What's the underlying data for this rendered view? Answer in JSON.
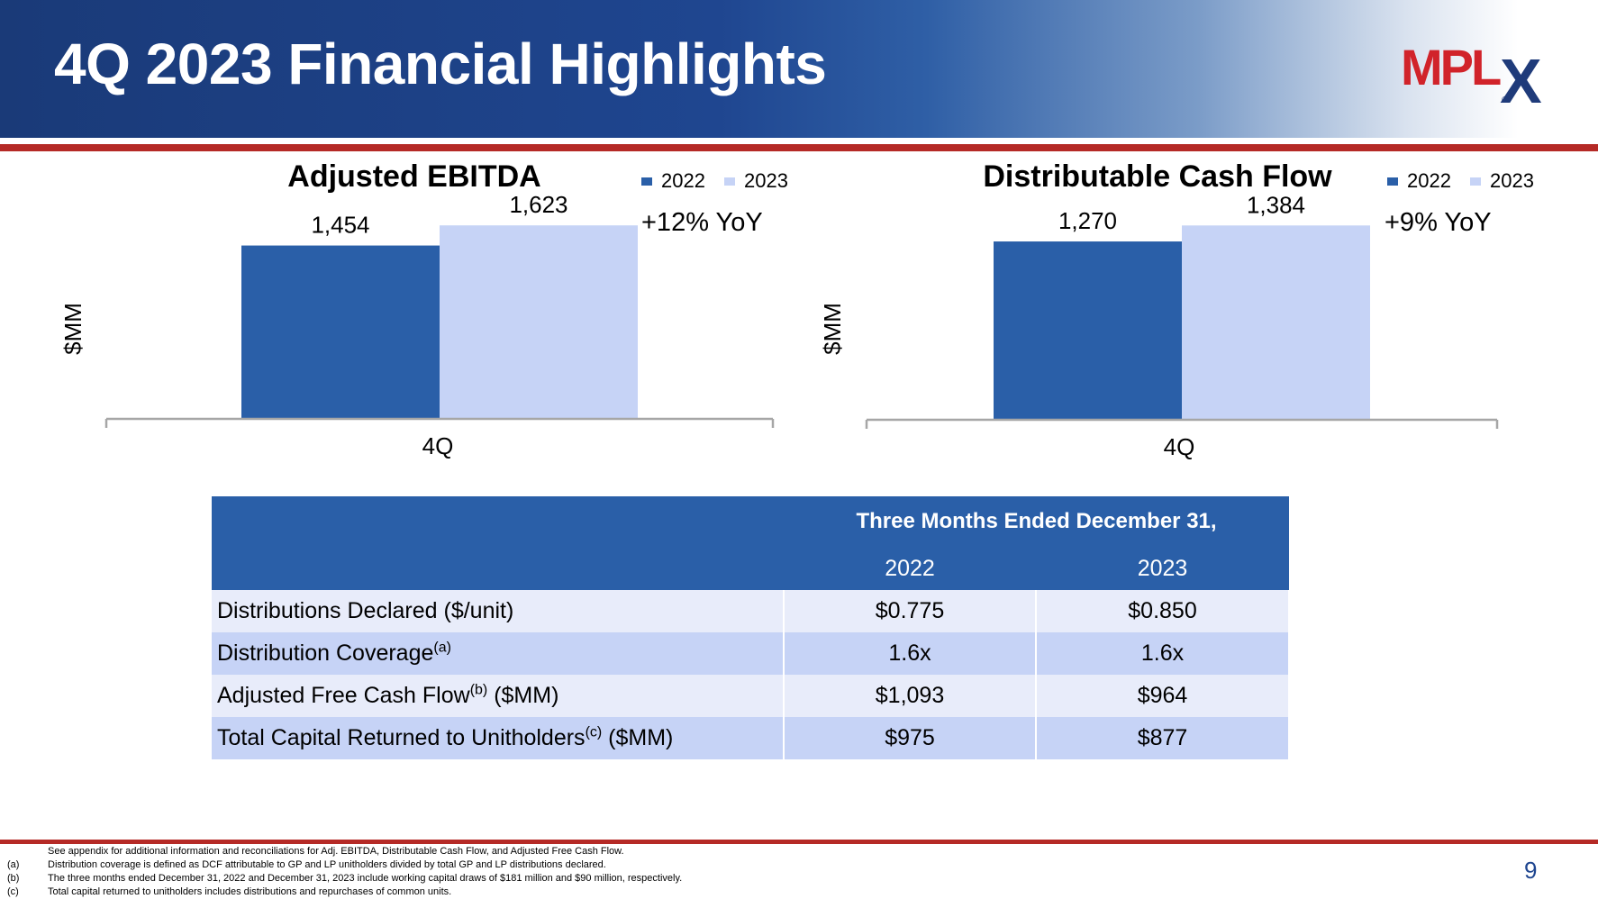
{
  "header": {
    "title": "4Q 2023 Financial Highlights",
    "logo_text": "MPLX",
    "logo_mark": "®"
  },
  "colors": {
    "brand_red": "#d1232a",
    "brand_navy": "#1f3b7a",
    "bar_2022": "#2a5fa8",
    "bar_2023": "#c6d3f6",
    "rule_red": "#b52a26"
  },
  "chart_data": [
    {
      "type": "bar",
      "title": "Adjusted EBITDA",
      "ylabel": "$MM",
      "categories": [
        "4Q"
      ],
      "series": [
        {
          "name": "2022",
          "values": [
            1454
          ],
          "label": "1,454"
        },
        {
          "name": "2023",
          "values": [
            1623
          ],
          "label": "1,623"
        }
      ],
      "annotation": "+12% YoY",
      "ylim": [
        0,
        1700
      ],
      "legend": "top-right",
      "grid": false
    },
    {
      "type": "bar",
      "title": "Distributable Cash Flow",
      "ylabel": "$MM",
      "categories": [
        "4Q"
      ],
      "series": [
        {
          "name": "2022",
          "values": [
            1270
          ],
          "label": "1,270"
        },
        {
          "name": "2023",
          "values": [
            1384
          ],
          "label": "1,384"
        }
      ],
      "annotation": "+9% YoY",
      "ylim": [
        0,
        1450
      ],
      "legend": "top-right",
      "grid": false
    }
  ],
  "table": {
    "header": "Three Months Ended December 31,",
    "columns": [
      "2022",
      "2023"
    ],
    "rows": [
      {
        "label": "Distributions Declared ($/unit)",
        "sup": "",
        "suffix": "",
        "v2022": "$0.775",
        "v2023": "$0.850"
      },
      {
        "label": "Distribution Coverage",
        "sup": "(a)",
        "suffix": "",
        "v2022": "1.6x",
        "v2023": "1.6x"
      },
      {
        "label": "Adjusted Free Cash Flow",
        "sup": "(b)",
        "suffix": " ($MM)",
        "v2022": "$1,093",
        "v2023": "$964"
      },
      {
        "label": "Total Capital Returned to Unitholders",
        "sup": "(c)",
        "suffix": " ($MM)",
        "v2022": "$975",
        "v2023": "$877"
      }
    ]
  },
  "footnotes": [
    {
      "marker": "",
      "text": "See appendix for additional information and reconciliations for Adj. EBITDA, Distributable Cash Flow, and Adjusted Free Cash Flow."
    },
    {
      "marker": "(a)",
      "text": "Distribution coverage is defined as DCF attributable to GP and LP unitholders divided by total GP and LP distributions declared."
    },
    {
      "marker": "(b)",
      "text": "The three months ended December 31, 2022 and December 31, 2023 include working capital draws of $181 million and $90 million, respectively."
    },
    {
      "marker": "(c)",
      "text": "Total capital returned to unitholders includes distributions and repurchases of common units."
    }
  ],
  "page_number": "9"
}
